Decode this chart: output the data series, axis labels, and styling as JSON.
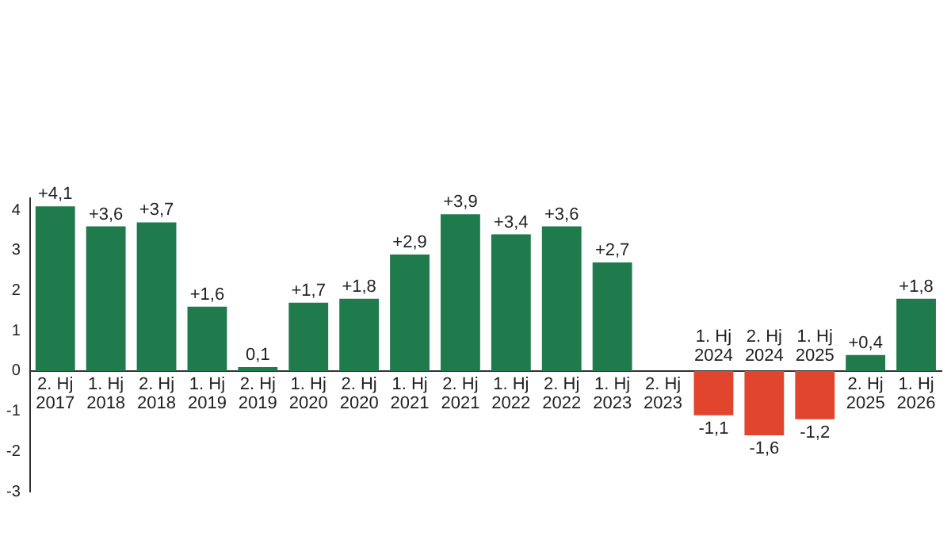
{
  "chart_data": {
    "type": "bar",
    "categories": [
      "2. Hj 2017",
      "1. Hj 2018",
      "2. Hj 2018",
      "1. Hj 2019",
      "2. Hj 2019",
      "1. Hj 2020",
      "2. Hj 2020",
      "1. Hj 2021",
      "2. Hj 2021",
      "1. Hj 2022",
      "2. Hj 2022",
      "1. Hj 2023",
      "2. Hj 2023",
      "1. Hj 2024",
      "2. Hj 2024",
      "1. Hj 2025",
      "2. Hj 2025",
      "1. Hj 2026"
    ],
    "values": [
      4.1,
      3.6,
      3.7,
      1.6,
      0.1,
      1.7,
      1.8,
      2.9,
      3.9,
      3.4,
      3.6,
      2.7,
      null,
      -1.1,
      -1.6,
      -1.2,
      0.4,
      1.8
    ],
    "value_labels": [
      "+4,1",
      "+3,6",
      "+3,7",
      "+1,6",
      "0,1",
      "+1,7",
      "+1,8",
      "+2,9",
      "+3,9",
      "+3,4",
      "+3,6",
      "+2,7",
      null,
      "-1,1",
      "-1,6",
      "-1,2",
      "+0,4",
      "+1,8"
    ],
    "colors": [
      "#1f7a4c",
      "#1f7a4c",
      "#1f7a4c",
      "#1f7a4c",
      "#1f7a4c",
      "#1f7a4c",
      "#1f7a4c",
      "#1f7a4c",
      "#1f7a4c",
      "#1f7a4c",
      "#1f7a4c",
      "#1f7a4c",
      "#1f7a4c",
      "#e2452e",
      "#e2452e",
      "#e2452e",
      "#1f7a4c",
      "#1f7a4c"
    ],
    "ylim": [
      -3,
      4.3
    ],
    "yticks": [
      -3,
      -2,
      -1,
      0,
      1,
      2,
      3,
      4
    ],
    "grid": false,
    "legend": false
  }
}
